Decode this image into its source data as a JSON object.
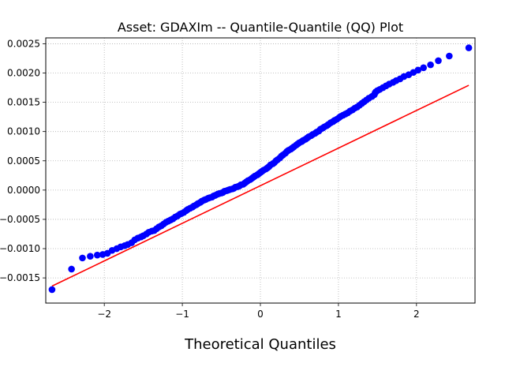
{
  "chart_data": {
    "type": "scatter",
    "title": "Asset: GDAXIm -- Quantile-Quantile (QQ) Plot",
    "xlabel": "Theoretical Quantiles",
    "ylabel": "",
    "xlim": [
      -2.75,
      2.75
    ],
    "ylim": [
      -0.00193,
      0.0026
    ],
    "grid": true,
    "x_ticks": [
      -2,
      -1,
      0,
      1,
      2
    ],
    "x_tick_labels": [
      "−2",
      "−1",
      "0",
      "1",
      "2"
    ],
    "y_ticks": [
      -0.0015,
      -0.001,
      -0.0005,
      0.0,
      0.0005,
      0.001,
      0.0015,
      0.002,
      0.0025
    ],
    "y_tick_labels": [
      "−0.0015",
      "−0.0010",
      "−0.0005",
      "0.0000",
      "0.0005",
      "0.0010",
      "0.0015",
      "0.0020",
      "0.0025"
    ],
    "colors": {
      "points": "#0000ff",
      "fit_line": "#ff0000",
      "grid": "#b0b0b0"
    },
    "fit_line": {
      "x": [
        -2.67,
        2.67
      ],
      "y": [
        -0.00164,
        0.00179
      ]
    },
    "points": {
      "x": [
        -2.67,
        -2.42,
        -2.28,
        -2.18,
        -2.09,
        -2.02,
        -1.96,
        -1.9,
        -1.84,
        -1.79,
        -1.74,
        -1.7,
        -1.65,
        -1.61,
        -1.57,
        -1.53,
        -1.5,
        -1.46,
        -1.43,
        -1.39,
        -1.36,
        -1.33,
        -1.3,
        -1.27,
        -1.24,
        -1.21,
        -1.18,
        -1.15,
        -1.12,
        -1.09,
        -1.06,
        -1.03,
        -1.01,
        -0.98,
        -0.95,
        -0.93,
        -0.9,
        -0.87,
        -0.85,
        -0.82,
        -0.8,
        -0.77,
        -0.75,
        -0.72,
        -0.7,
        -0.67,
        -0.65,
        -0.62,
        -0.6,
        -0.58,
        -0.55,
        -0.53,
        -0.5,
        -0.48,
        -0.46,
        -0.43,
        -0.41,
        -0.39,
        -0.36,
        -0.34,
        -0.32,
        -0.29,
        -0.27,
        -0.25,
        -0.22,
        -0.2,
        -0.18,
        -0.16,
        -0.13,
        -0.11,
        -0.09,
        -0.07,
        -0.04,
        -0.02,
        0.0,
        0.02,
        0.04,
        0.07,
        0.09,
        0.11,
        0.13,
        0.16,
        0.18,
        0.2,
        0.22,
        0.25,
        0.27,
        0.29,
        0.32,
        0.34,
        0.36,
        0.39,
        0.41,
        0.43,
        0.46,
        0.48,
        0.5,
        0.53,
        0.55,
        0.58,
        0.6,
        0.62,
        0.65,
        0.67,
        0.7,
        0.72,
        0.75,
        0.77,
        0.8,
        0.82,
        0.85,
        0.87,
        0.9,
        0.93,
        0.95,
        0.98,
        1.01,
        1.03,
        1.06,
        1.09,
        1.12,
        1.15,
        1.18,
        1.21,
        1.24,
        1.27,
        1.3,
        1.33,
        1.36,
        1.39,
        1.43,
        1.46,
        1.47,
        1.48,
        1.5,
        1.53,
        1.57,
        1.61,
        1.65,
        1.7,
        1.74,
        1.79,
        1.84,
        1.9,
        1.96,
        2.02,
        2.09,
        2.18,
        2.28,
        2.42,
        2.67
      ],
      "y": [
        -0.0017,
        -0.00135,
        -0.00116,
        -0.00113,
        -0.00111,
        -0.0011,
        -0.00108,
        -0.00103,
        -0.001,
        -0.00097,
        -0.00095,
        -0.00093,
        -0.0009,
        -0.00085,
        -0.00082,
        -0.0008,
        -0.00078,
        -0.00075,
        -0.00072,
        -0.0007,
        -0.00069,
        -0.00066,
        -0.00063,
        -0.00061,
        -0.00058,
        -0.00055,
        -0.00053,
        -0.00051,
        -0.00049,
        -0.00046,
        -0.00044,
        -0.00041,
        -0.0004,
        -0.00038,
        -0.00035,
        -0.00033,
        -0.00031,
        -0.00029,
        -0.00027,
        -0.00025,
        -0.00023,
        -0.00021,
        -0.00019,
        -0.00017,
        -0.00016,
        -0.00014,
        -0.00013,
        -0.00012,
        -0.0001,
        -9e-05,
        -7e-05,
        -6e-05,
        -5e-05,
        -4e-05,
        -2e-05,
        -1e-05,
        0.0,
        1e-05,
        2e-05,
        3e-05,
        5e-05,
        6e-05,
        7e-05,
        9e-05,
        0.0001,
        0.00012,
        0.00014,
        0.00016,
        0.00018,
        0.0002,
        0.00022,
        0.00024,
        0.00026,
        0.00028,
        0.0003,
        0.00032,
        0.00034,
        0.00036,
        0.00038,
        0.0004,
        0.00043,
        0.00045,
        0.00047,
        0.0005,
        0.00052,
        0.00055,
        0.00058,
        0.0006,
        0.00063,
        0.00066,
        0.00068,
        0.0007,
        0.00072,
        0.00074,
        0.00077,
        0.00079,
        0.00081,
        0.00083,
        0.00085,
        0.00087,
        0.00089,
        0.00091,
        0.00093,
        0.00095,
        0.00097,
        0.00099,
        0.00101,
        0.00104,
        0.00106,
        0.00108,
        0.0011,
        0.00112,
        0.00115,
        0.00117,
        0.00119,
        0.00121,
        0.00124,
        0.00126,
        0.00128,
        0.0013,
        0.00132,
        0.00135,
        0.00137,
        0.0014,
        0.00142,
        0.00145,
        0.00148,
        0.00151,
        0.00154,
        0.00157,
        0.0016,
        0.00163,
        0.00166,
        0.00168,
        0.0017,
        0.00172,
        0.00175,
        0.00178,
        0.00181,
        0.00184,
        0.00187,
        0.0019,
        0.00194,
        0.00197,
        0.00201,
        0.00205,
        0.00209,
        0.00214,
        0.00221,
        0.00229,
        0.00243
      ]
    }
  }
}
